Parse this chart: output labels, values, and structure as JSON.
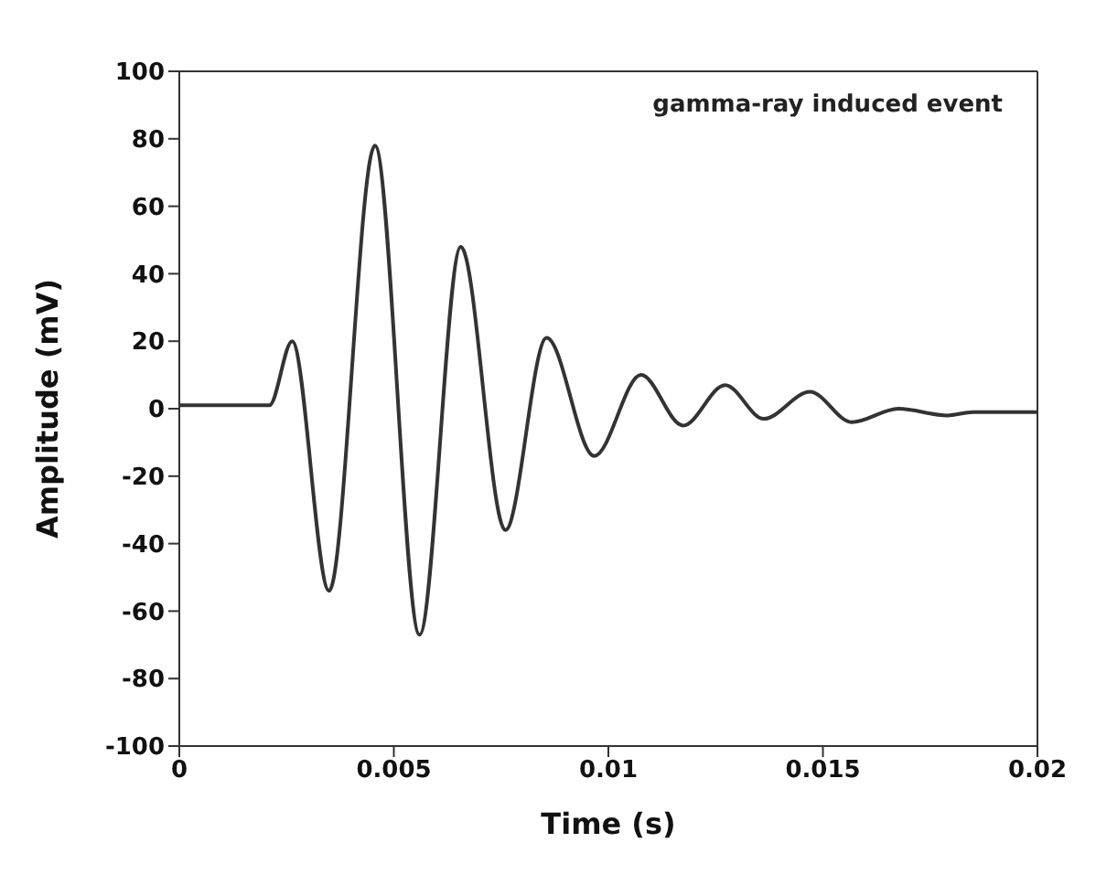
{
  "chart_data": {
    "type": "line",
    "xlabel": "Time (s)",
    "ylabel": "Amplitude (mV)",
    "annotations": [
      "gamma-ray induced event"
    ],
    "x": [
      0,
      0.001,
      0.0021,
      0.00263,
      0.00349,
      0.00456,
      0.0056,
      0.00656,
      0.0076,
      0.00856,
      0.00967,
      0.01076,
      0.01174,
      0.01272,
      0.01362,
      0.0147,
      0.01567,
      0.01676,
      0.0179,
      0.0185,
      0.02
    ],
    "series": [
      {
        "color": "#333333",
        "values": [
          1,
          1,
          1,
          20,
          -54,
          78,
          -67,
          48,
          -36,
          21,
          -14,
          10,
          -5,
          7,
          -3,
          5,
          -4,
          0,
          -2,
          -1,
          -1
        ]
      }
    ],
    "xlim": [
      0,
      0.02
    ],
    "xticks": [
      0,
      0.005,
      0.01,
      0.015,
      0.02
    ],
    "ylim": [
      -100,
      100
    ],
    "yticks": [
      -100,
      -80,
      -60,
      -40,
      -20,
      0,
      20,
      40,
      60,
      80,
      100
    ],
    "grid": false,
    "legend": false,
    "marker": "none",
    "line_style": "solid"
  }
}
